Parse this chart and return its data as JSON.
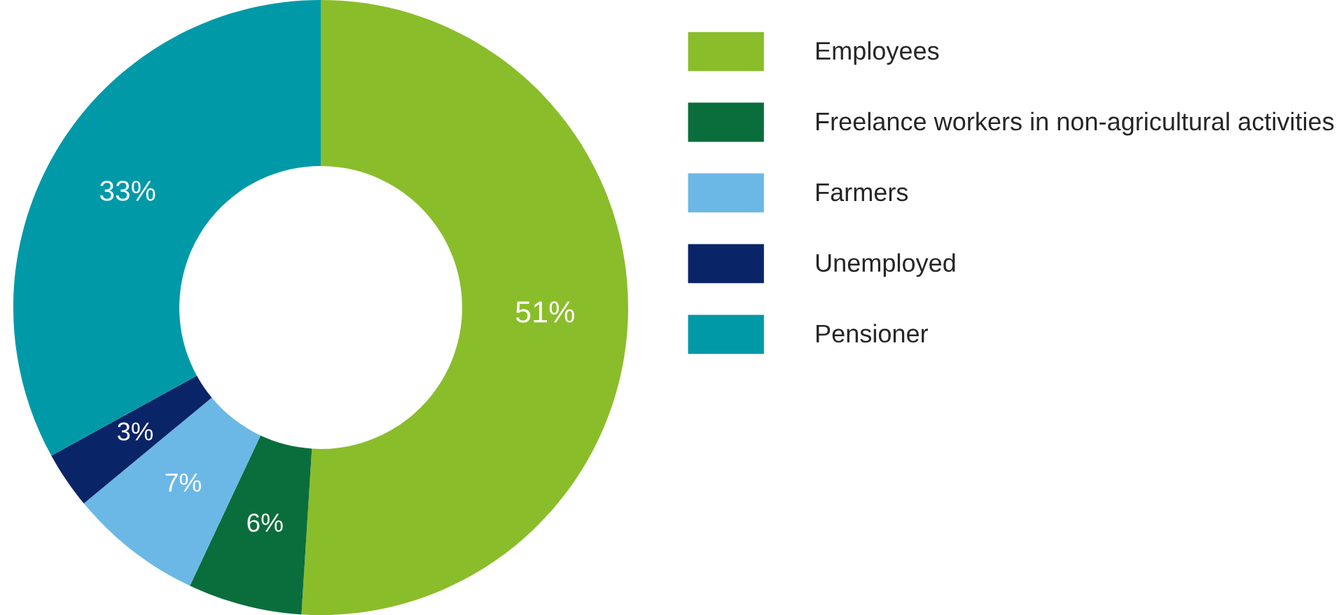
{
  "chart_data": {
    "type": "donut",
    "categories": [
      "Employees",
      "Freelance workers in non-agricultural activities",
      "Farmers",
      "Unemployed",
      "Pensioner"
    ],
    "values": [
      51,
      6,
      7,
      3,
      33
    ],
    "value_labels": [
      "51%",
      "6%",
      "7%",
      "3%",
      "33%"
    ],
    "colors": [
      "#8abd2a",
      "#0a6e3c",
      "#6bb8e6",
      "#0a2468",
      "#0099a8"
    ],
    "legend": "right"
  }
}
